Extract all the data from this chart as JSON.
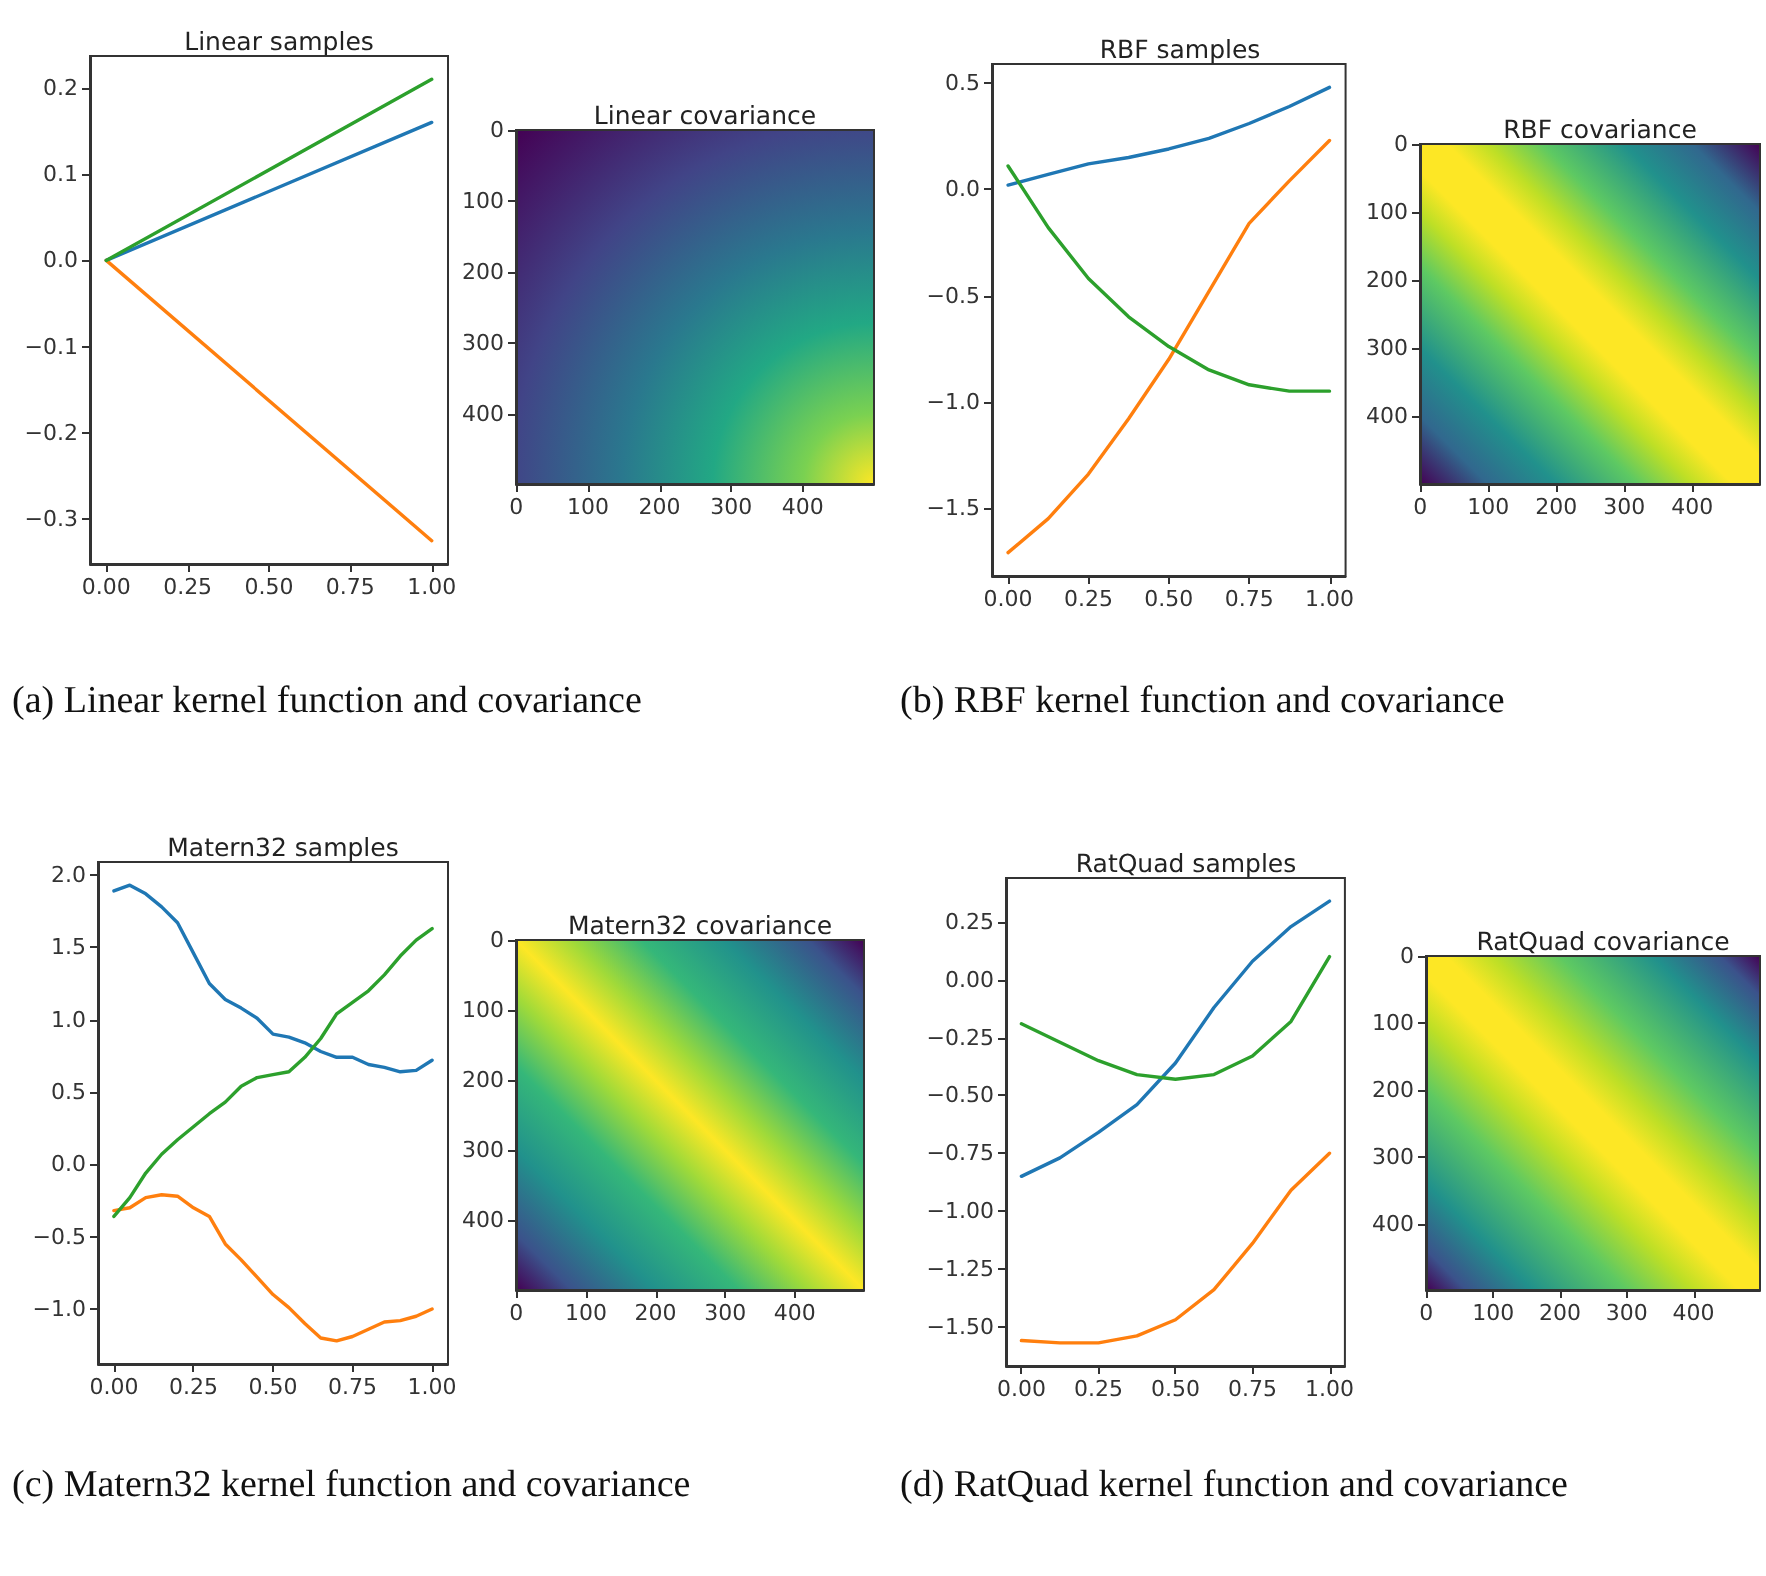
{
  "chart_data": [
    {
      "type": "line",
      "title": "Linear samples",
      "annotations": [
        "(a) Linear kernel function and covariance"
      ],
      "x": [
        0,
        1
      ],
      "series": [
        {
          "color": "#1f77b4",
          "values": [
            0,
            0.16
          ]
        },
        {
          "color": "#ff7f0e",
          "values": [
            0,
            -0.325
          ]
        },
        {
          "color": "#2ca02c",
          "values": [
            0,
            0.21
          ]
        }
      ],
      "xlim": [
        -0.05,
        1.05
      ],
      "xticks": [
        {
          "value": 0,
          "label": "0.00"
        },
        {
          "value": 0.25,
          "label": "0.25"
        },
        {
          "value": 0.5,
          "label": "0.50"
        },
        {
          "value": 0.75,
          "label": "0.75"
        },
        {
          "value": 1,
          "label": "1.00"
        }
      ],
      "ylim": [
        -0.352,
        0.237
      ],
      "yticks": [
        {
          "value": -0.3,
          "label": "−0.3"
        },
        {
          "value": -0.2,
          "label": "−0.2"
        },
        {
          "value": -0.1,
          "label": "−0.1"
        },
        {
          "value": 0,
          "label": "0.0"
        },
        {
          "value": 0.1,
          "label": "0.1"
        },
        {
          "value": 0.2,
          "label": "0.2"
        }
      ]
    },
    {
      "type": "heatmap",
      "title": "Linear covariance",
      "xlim": [
        -0.5,
        499.5
      ],
      "xticks": [
        0,
        100,
        200,
        300,
        400
      ],
      "ylim": [
        499.5,
        -0.5
      ],
      "yticks": [
        0,
        100,
        200,
        300,
        400
      ]
    },
    {
      "type": "line",
      "title": "RBF samples",
      "annotations": [
        "(b) RBF kernel function and covariance"
      ],
      "x": [
        0,
        0.125,
        0.25,
        0.375,
        0.5,
        0.625,
        0.75,
        0.875,
        1
      ],
      "series": [
        {
          "color": "#1f77b4",
          "values": [
            0.02,
            0.07,
            0.12,
            0.15,
            0.19,
            0.24,
            0.31,
            0.39,
            0.48
          ]
        },
        {
          "color": "#ff7f0e",
          "values": [
            -1.71,
            -1.55,
            -1.34,
            -1.08,
            -0.8,
            -0.48,
            -0.16,
            0.04,
            0.23
          ]
        },
        {
          "color": "#2ca02c",
          "values": [
            0.11,
            -0.18,
            -0.42,
            -0.6,
            -0.74,
            -0.85,
            -0.92,
            -0.95,
            -0.95
          ]
        }
      ],
      "xlim": [
        -0.05,
        1.05
      ],
      "xticks": [
        {
          "value": 0,
          "label": "0.00"
        },
        {
          "value": 0.25,
          "label": "0.25"
        },
        {
          "value": 0.5,
          "label": "0.50"
        },
        {
          "value": 0.75,
          "label": "0.75"
        },
        {
          "value": 1,
          "label": "1.00"
        }
      ],
      "ylim": [
        -1.82,
        0.59
      ],
      "yticks": [
        {
          "value": -1.5,
          "label": "−1.5"
        },
        {
          "value": -1,
          "label": "−1.0"
        },
        {
          "value": -0.5,
          "label": "−0.5"
        },
        {
          "value": 0,
          "label": "0.0"
        },
        {
          "value": 0.5,
          "label": "0.5"
        }
      ]
    },
    {
      "type": "heatmap",
      "title": "RBF covariance",
      "xlim": [
        -0.5,
        499.5
      ],
      "xticks": [
        0,
        100,
        200,
        300,
        400
      ],
      "ylim": [
        499.5,
        -0.5
      ],
      "yticks": [
        0,
        100,
        200,
        300,
        400
      ]
    },
    {
      "type": "line",
      "title": "Matern32 samples",
      "annotations": [
        "(c) Matern32 kernel function and covariance"
      ],
      "x": [
        0,
        0.05,
        0.1,
        0.15,
        0.2,
        0.25,
        0.3,
        0.35,
        0.4,
        0.45,
        0.5,
        0.55,
        0.6,
        0.65,
        0.7,
        0.75,
        0.8,
        0.85,
        0.9,
        0.95,
        1
      ],
      "series": [
        {
          "color": "#1f77b4",
          "values": [
            1.89,
            1.93,
            1.87,
            1.78,
            1.67,
            1.46,
            1.25,
            1.14,
            1.08,
            1.01,
            0.9,
            0.88,
            0.84,
            0.78,
            0.74,
            0.74,
            0.69,
            0.67,
            0.64,
            0.65,
            0.72
          ]
        },
        {
          "color": "#ff7f0e",
          "values": [
            -0.32,
            -0.3,
            -0.23,
            -0.21,
            -0.22,
            -0.3,
            -0.36,
            -0.55,
            -0.66,
            -0.78,
            -0.9,
            -0.99,
            -1.1,
            -1.2,
            -1.22,
            -1.19,
            -1.14,
            -1.09,
            -1.08,
            -1.05,
            -1
          ]
        },
        {
          "color": "#2ca02c",
          "values": [
            -0.36,
            -0.23,
            -0.06,
            0.07,
            0.17,
            0.26,
            0.35,
            0.43,
            0.54,
            0.6,
            0.62,
            0.64,
            0.74,
            0.87,
            1.04,
            1.12,
            1.2,
            1.31,
            1.44,
            1.55,
            1.63
          ]
        }
      ],
      "xlim": [
        -0.05,
        1.05
      ],
      "xticks": [
        {
          "value": 0,
          "label": "0.00"
        },
        {
          "value": 0.25,
          "label": "0.25"
        },
        {
          "value": 0.5,
          "label": "0.50"
        },
        {
          "value": 0.75,
          "label": "0.75"
        },
        {
          "value": 1,
          "label": "1.00"
        }
      ],
      "ylim": [
        -1.38,
        2.09
      ],
      "yticks": [
        {
          "value": -1,
          "label": "−1.0"
        },
        {
          "value": -0.5,
          "label": "−0.5"
        },
        {
          "value": 0,
          "label": "0.0"
        },
        {
          "value": 0.5,
          "label": "0.5"
        },
        {
          "value": 1,
          "label": "1.0"
        },
        {
          "value": 1.5,
          "label": "1.5"
        },
        {
          "value": 2,
          "label": "2.0"
        }
      ]
    },
    {
      "type": "heatmap",
      "title": "Matern32 covariance",
      "xlim": [
        -0.5,
        499.5
      ],
      "xticks": [
        0,
        100,
        200,
        300,
        400
      ],
      "ylim": [
        499.5,
        -0.5
      ],
      "yticks": [
        0,
        100,
        200,
        300,
        400
      ]
    },
    {
      "type": "line",
      "title": "RatQuad samples",
      "annotations": [
        "(d) RatQuad kernel function and covariance"
      ],
      "x": [
        0,
        0.125,
        0.25,
        0.375,
        0.5,
        0.625,
        0.75,
        0.875,
        1
      ],
      "series": [
        {
          "color": "#1f77b4",
          "values": [
            -0.85,
            -0.77,
            -0.66,
            -0.54,
            -0.36,
            -0.12,
            0.08,
            0.23,
            0.34
          ]
        },
        {
          "color": "#ff7f0e",
          "values": [
            -1.56,
            -1.57,
            -1.57,
            -1.54,
            -1.47,
            -1.34,
            -1.14,
            -0.91,
            -0.75
          ]
        },
        {
          "color": "#2ca02c",
          "values": [
            -0.19,
            -0.27,
            -0.35,
            -0.41,
            -0.43,
            -0.41,
            -0.33,
            -0.18,
            0.1
          ]
        }
      ],
      "xlim": [
        -0.05,
        1.05
      ],
      "xticks": [
        {
          "value": 0,
          "label": "0.00"
        },
        {
          "value": 0.25,
          "label": "0.25"
        },
        {
          "value": 0.5,
          "label": "0.50"
        },
        {
          "value": 0.75,
          "label": "0.75"
        },
        {
          "value": 1,
          "label": "1.00"
        }
      ],
      "ylim": [
        -1.67,
        0.44
      ],
      "yticks": [
        {
          "value": -1.5,
          "label": "−1.50"
        },
        {
          "value": -1.25,
          "label": "−1.25"
        },
        {
          "value": -1,
          "label": "−1.00"
        },
        {
          "value": -0.75,
          "label": "−0.75"
        },
        {
          "value": -0.5,
          "label": "−0.50"
        },
        {
          "value": -0.25,
          "label": "−0.25"
        },
        {
          "value": 0,
          "label": "0.00"
        },
        {
          "value": 0.25,
          "label": "0.25"
        }
      ]
    },
    {
      "type": "heatmap",
      "title": "RatQuad covariance",
      "xlim": [
        -0.5,
        499.5
      ],
      "xticks": [
        0,
        100,
        200,
        300,
        400
      ],
      "ylim": [
        499.5,
        -0.5
      ],
      "yticks": [
        0,
        100,
        200,
        300,
        400
      ]
    }
  ]
}
